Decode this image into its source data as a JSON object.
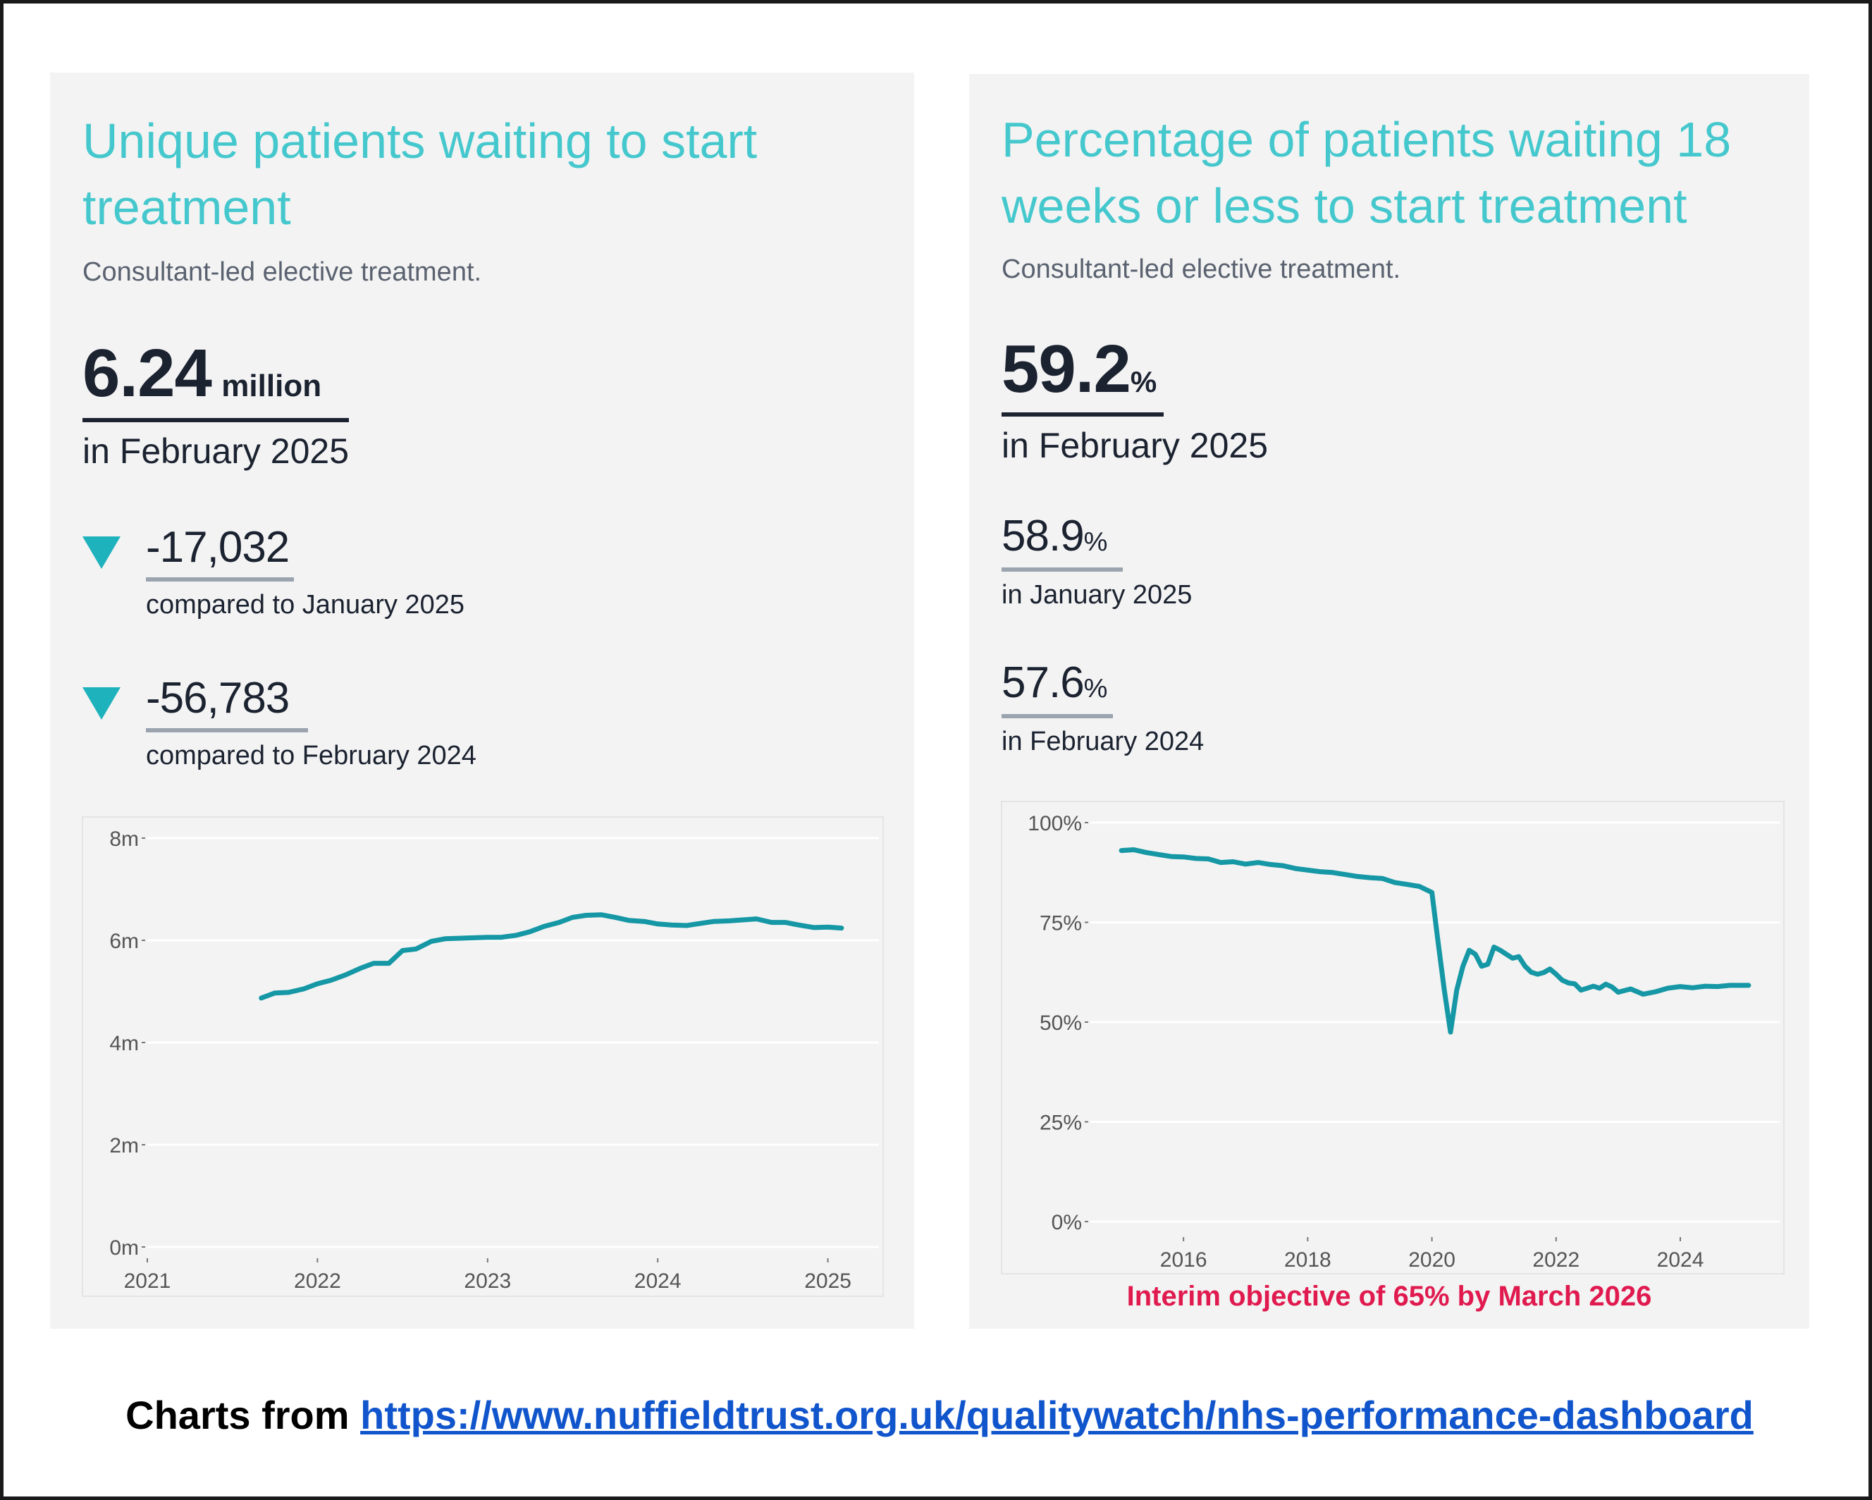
{
  "footer": {
    "prefix": "Charts from",
    "link": "https://www.nuffieldtrust.org.uk/qualitywatch/nhs-performance-dashboard"
  },
  "left_panel": {
    "title": "Unique patients waiting to start treatment",
    "subtitle": "Consultant-led elective treatment.",
    "headline": {
      "value": "6.24",
      "unit": "million",
      "period": "in February 2025"
    },
    "deltas": [
      {
        "value": "-17,032",
        "period": "compared to January 2025",
        "direction": "down"
      },
      {
        "value": "-56,783",
        "period": "compared to February 2024",
        "direction": "down"
      }
    ]
  },
  "right_panel": {
    "title": "Percentage of patients waiting 18 weeks or less to start treatment",
    "subtitle": "Consultant-led elective treatment.",
    "headline": {
      "value": "59.2",
      "unit": "%",
      "period": "in February 2025"
    },
    "comparisons": [
      {
        "value": "58.9",
        "unit": "%",
        "period": "in January 2025"
      },
      {
        "value": "57.6",
        "unit": "%",
        "period": "in February 2024"
      }
    ],
    "note": "Interim objective of 65% by March 2026"
  },
  "colors": {
    "title": "#45c8cd",
    "line": "#1597a5",
    "down_arrow": "#1eb2bd",
    "note": "#e01a4f",
    "link": "#1155cc",
    "panel_bg": "#f3f3f3"
  },
  "chart_data": [
    {
      "type": "line",
      "title": "Unique patients waiting to start treatment",
      "xlabel": "",
      "ylabel": "",
      "xlim": [
        2021.0,
        2025.3
      ],
      "ylim": [
        0,
        8
      ],
      "x_ticks": [
        2021,
        2022,
        2023,
        2024,
        2025
      ],
      "x_tick_labels": [
        "2021",
        "2022",
        "2023",
        "2024",
        "2025"
      ],
      "y_ticks": [
        0,
        2,
        4,
        6,
        8
      ],
      "y_tick_labels": [
        "0m",
        "2m",
        "4m",
        "6m",
        "8m"
      ],
      "grid": "horizontal",
      "legend": "none",
      "series": [
        {
          "color": "#1597a5",
          "x": [
            2021.67,
            2021.75,
            2021.83,
            2021.92,
            2022.0,
            2022.08,
            2022.17,
            2022.25,
            2022.33,
            2022.42,
            2022.5,
            2022.58,
            2022.67,
            2022.75,
            2022.83,
            2022.92,
            2023.0,
            2023.08,
            2023.17,
            2023.25,
            2023.33,
            2023.42,
            2023.5,
            2023.58,
            2023.67,
            2023.75,
            2023.83,
            2023.92,
            2024.0,
            2024.08,
            2024.17,
            2024.25,
            2024.33,
            2024.42,
            2024.5,
            2024.58,
            2024.67,
            2024.75,
            2024.83,
            2024.92,
            2025.0,
            2025.08
          ],
          "y": [
            4.87,
            4.97,
            4.98,
            5.05,
            5.15,
            5.22,
            5.33,
            5.45,
            5.55,
            5.55,
            5.8,
            5.83,
            5.98,
            6.03,
            6.04,
            6.05,
            6.06,
            6.06,
            6.1,
            6.17,
            6.27,
            6.35,
            6.45,
            6.49,
            6.5,
            6.45,
            6.39,
            6.37,
            6.32,
            6.3,
            6.29,
            6.33,
            6.37,
            6.38,
            6.4,
            6.42,
            6.35,
            6.35,
            6.3,
            6.25,
            6.26,
            6.24
          ]
        }
      ]
    },
    {
      "type": "line",
      "title": "Percentage of patients waiting 18 weeks or less to start treatment",
      "xlabel": "",
      "ylabel": "",
      "xlim": [
        2014.5,
        2025.6
      ],
      "ylim": [
        0,
        100
      ],
      "x_ticks": [
        2016,
        2018,
        2020,
        2022,
        2024
      ],
      "x_tick_labels": [
        "2016",
        "2018",
        "2020",
        "2022",
        "2024"
      ],
      "y_ticks": [
        0,
        25,
        50,
        75,
        100
      ],
      "y_tick_labels": [
        "0%",
        "25%",
        "50%",
        "75%",
        "100%"
      ],
      "grid": "horizontal",
      "legend": "none",
      "series": [
        {
          "color": "#1597a5",
          "x": [
            2015.0,
            2015.2,
            2015.4,
            2015.6,
            2015.8,
            2016.0,
            2016.2,
            2016.4,
            2016.6,
            2016.8,
            2017.0,
            2017.2,
            2017.4,
            2017.6,
            2017.8,
            2018.0,
            2018.2,
            2018.4,
            2018.6,
            2018.8,
            2019.0,
            2019.2,
            2019.4,
            2019.6,
            2019.8,
            2020.0,
            2020.1,
            2020.2,
            2020.3,
            2020.4,
            2020.5,
            2020.6,
            2020.7,
            2020.8,
            2020.9,
            2021.0,
            2021.1,
            2021.2,
            2021.3,
            2021.4,
            2021.5,
            2021.6,
            2021.7,
            2021.8,
            2021.9,
            2022.0,
            2022.1,
            2022.2,
            2022.3,
            2022.4,
            2022.5,
            2022.6,
            2022.7,
            2022.8,
            2022.9,
            2023.0,
            2023.2,
            2023.4,
            2023.6,
            2023.8,
            2024.0,
            2024.2,
            2024.4,
            2024.6,
            2024.8,
            2025.0,
            2025.1
          ],
          "y": [
            93,
            93.2,
            92.5,
            92,
            91.5,
            91.4,
            91,
            90.9,
            90,
            90.2,
            89.6,
            90,
            89.5,
            89.2,
            88.5,
            88.1,
            87.7,
            87.5,
            87,
            86.5,
            86.2,
            86,
            85,
            84.5,
            84,
            82.5,
            70,
            58,
            47.5,
            58,
            64,
            68,
            67,
            64,
            64.5,
            68.8,
            68,
            67,
            66,
            66.4,
            64,
            62.5,
            62,
            62.4,
            63.3,
            62,
            60.5,
            59.8,
            59.6,
            58,
            58.5,
            59,
            58.5,
            59.5,
            58.8,
            57.5,
            58.3,
            57,
            57.6,
            58.5,
            58.9,
            58.6,
            59,
            58.9,
            59.2,
            59.2,
            59.2
          ]
        }
      ]
    }
  ]
}
